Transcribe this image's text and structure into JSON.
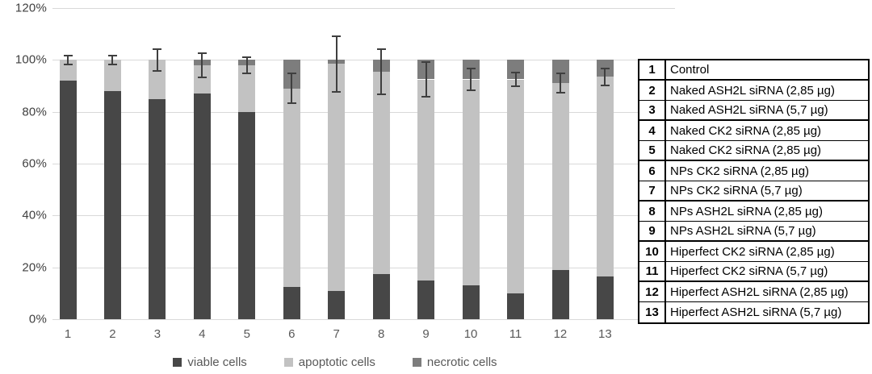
{
  "chart_data": {
    "type": "bar",
    "stacked": true,
    "categories": [
      "1",
      "2",
      "3",
      "4",
      "5",
      "6",
      "7",
      "8",
      "9",
      "10",
      "11",
      "12",
      "13"
    ],
    "series": [
      {
        "name": "viable cells",
        "color": "#474747",
        "values": [
          92,
          88,
          85,
          87,
          80,
          12.5,
          11,
          17.5,
          15,
          13,
          10,
          19,
          16.5
        ]
      },
      {
        "name": "apoptotic cells",
        "color": "#c2c2c2",
        "values": [
          8,
          12,
          15,
          11,
          18,
          76.5,
          87.5,
          78,
          77.5,
          79.5,
          82.5,
          72,
          77
        ]
      },
      {
        "name": "necrotic cells",
        "color": "#7d7d7d",
        "values": [
          0,
          0,
          0,
          2,
          2,
          11,
          1.5,
          4.5,
          7.5,
          7.5,
          7.5,
          9,
          6.5
        ]
      }
    ],
    "error_bars": {
      "attached_to": "viable+apoptotic boundary",
      "centers": [
        100,
        100,
        100,
        98,
        98,
        89,
        98.5,
        95.5,
        92.5,
        92.5,
        92.5,
        91,
        93.5
      ],
      "plus_minus": [
        2,
        2,
        4.5,
        5,
        3.5,
        6,
        11,
        9,
        7,
        4.5,
        3,
        4,
        3.5
      ]
    },
    "title": "",
    "xlabel": "",
    "ylabel": "",
    "y_ticks": [
      "0%",
      "20%",
      "40%",
      "60%",
      "80%",
      "100%",
      "120%"
    ],
    "ylim": [
      0,
      120
    ],
    "grid": "horizontal",
    "legend_position": "bottom"
  },
  "side_table": {
    "rows": [
      {
        "num": "1",
        "label": "Control"
      },
      {
        "num": "2",
        "label": "Naked ASH2L siRNA (2,85 µg)"
      },
      {
        "num": "3",
        "label": "Naked ASH2L siRNA (5,7 µg)"
      },
      {
        "num": "4",
        "label": "Naked CK2 siRNA (2,85 µg)"
      },
      {
        "num": "5",
        "label": "Naked CK2 siRNA (2,85 µg)"
      },
      {
        "num": "6",
        "label": "NPs CK2 siRNA (2,85 µg)"
      },
      {
        "num": "7",
        "label": "NPs CK2 siRNA (5,7 µg)"
      },
      {
        "num": "8",
        "label": "NPs ASH2L siRNA (2,85 µg)"
      },
      {
        "num": "9",
        "label": "NPs ASH2L siRNA (5,7 µg)"
      },
      {
        "num": "10",
        "label": "Hiperfect CK2 siRNA (2,85 µg)"
      },
      {
        "num": "11",
        "label": "Hiperfect CK2 siRNA (5,7 µg)"
      },
      {
        "num": "12",
        "label": "Hiperfect ASH2L siRNA (2,85 µg)"
      },
      {
        "num": "13",
        "label": "Hiperfect ASH2L siRNA (5,7 µg)"
      }
    ]
  },
  "colors": {
    "viable": "#474747",
    "apoptotic": "#c2c2c2",
    "necrotic": "#7d7d7d",
    "gridline": "#d9d9d9",
    "error_bar": "#3f3f3f",
    "axis_text": "#595959",
    "table_border": "#000000",
    "background": "#ffffff"
  }
}
